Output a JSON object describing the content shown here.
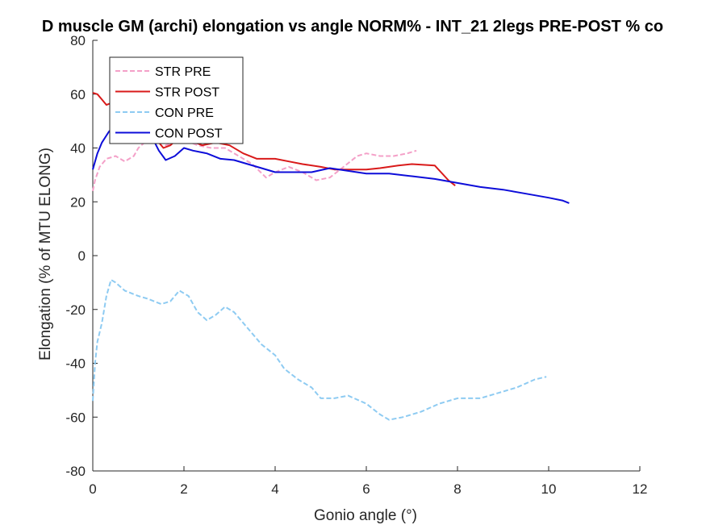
{
  "chart_data": {
    "type": "line",
    "title": "D muscle GM (archi) elongation vs angle NORM% - INT_21 2legs PRE-POST % co",
    "xlabel": "Gonio angle (°)",
    "ylabel": "Elongation (% of MTU ELONG)",
    "xlim": [
      0,
      12
    ],
    "ylim": [
      -80,
      80
    ],
    "xticks": [
      0,
      2,
      4,
      6,
      8,
      10,
      12
    ],
    "yticks": [
      -80,
      -60,
      -40,
      -20,
      0,
      20,
      40,
      60,
      80
    ],
    "grid": false,
    "legend_position": "top-left",
    "series": [
      {
        "name": "STR PRE",
        "color": "#f4a0c8",
        "style": "dashed",
        "x": [
          0,
          0.05,
          0.15,
          0.3,
          0.5,
          0.7,
          0.9,
          1.0,
          1.2,
          1.4,
          1.6,
          1.8,
          2.0,
          2.3,
          2.6,
          2.9,
          3.2,
          3.5,
          3.8,
          4.0,
          4.3,
          4.6,
          4.9,
          5.2,
          5.5,
          5.8,
          6.0,
          6.3,
          6.6,
          6.9,
          7.1
        ],
        "y": [
          24,
          28,
          33,
          36,
          37,
          35,
          37,
          40,
          43,
          44,
          41,
          42,
          43,
          41,
          40,
          40,
          37,
          34,
          29,
          31,
          33,
          31,
          28,
          29,
          33,
          37,
          38,
          37,
          37,
          38,
          39
        ]
      },
      {
        "name": "STR POST",
        "color": "#d91a1a",
        "style": "solid",
        "x": [
          0,
          0.1,
          0.2,
          0.3,
          0.45,
          0.6,
          0.8,
          1.0,
          1.2,
          1.4,
          1.55,
          1.7,
          1.9,
          2.1,
          2.4,
          2.7,
          3.0,
          3.3,
          3.6,
          4.0,
          4.3,
          4.6,
          5.0,
          5.3,
          5.6,
          6.0,
          6.3,
          6.7,
          7.0,
          7.5,
          7.8,
          7.95
        ],
        "y": [
          60.5,
          60,
          58,
          56,
          57,
          53,
          50,
          47,
          47,
          43,
          40,
          41,
          44,
          43,
          41,
          42,
          41,
          38,
          36,
          36,
          35,
          34,
          33,
          32,
          32,
          32,
          32.5,
          33.5,
          34,
          33.5,
          28,
          26
        ]
      },
      {
        "name": "CON PRE",
        "color": "#8ecbf2",
        "style": "dashed",
        "x": [
          0,
          0.05,
          0.1,
          0.2,
          0.3,
          0.4,
          0.5,
          0.7,
          1.0,
          1.2,
          1.5,
          1.7,
          1.9,
          2.1,
          2.3,
          2.5,
          2.7,
          2.9,
          3.1,
          3.4,
          3.7,
          4.0,
          4.2,
          4.5,
          4.8,
          5.0,
          5.3,
          5.6,
          6.0,
          6.3,
          6.5,
          6.8,
          7.2,
          7.6,
          8.0,
          8.5,
          8.9,
          9.3,
          9.7,
          9.95
        ],
        "y": [
          -54,
          -40,
          -32,
          -25,
          -15,
          -9,
          -10,
          -13,
          -15,
          -16,
          -18,
          -17,
          -13,
          -15,
          -21,
          -24,
          -22,
          -19,
          -21,
          -27,
          -33,
          -37,
          -42,
          -46,
          -49,
          -53,
          -53,
          -52,
          -55,
          -59,
          -61,
          -60,
          -58,
          -55,
          -53,
          -53,
          -51,
          -49,
          -46,
          -45
        ]
      },
      {
        "name": "CON POST",
        "color": "#0d0dd9",
        "style": "solid",
        "x": [
          0,
          0.1,
          0.2,
          0.35,
          0.5,
          0.7,
          0.9,
          1.1,
          1.3,
          1.45,
          1.6,
          1.8,
          2.0,
          2.2,
          2.5,
          2.8,
          3.1,
          3.4,
          3.7,
          4.0,
          4.4,
          4.8,
          5.2,
          5.6,
          6.0,
          6.5,
          7.0,
          7.5,
          8.0,
          8.5,
          9.0,
          9.5,
          10.0,
          10.3,
          10.45
        ],
        "y": [
          32,
          38,
          42,
          46,
          49,
          49,
          48,
          46,
          44,
          39,
          35.5,
          37,
          40,
          39,
          38,
          36,
          35.5,
          34,
          32.5,
          31,
          31,
          31,
          32.5,
          31.5,
          30.5,
          30.5,
          29.5,
          28.5,
          27,
          25.5,
          24.5,
          23,
          21.5,
          20.5,
          19.5
        ]
      }
    ]
  }
}
